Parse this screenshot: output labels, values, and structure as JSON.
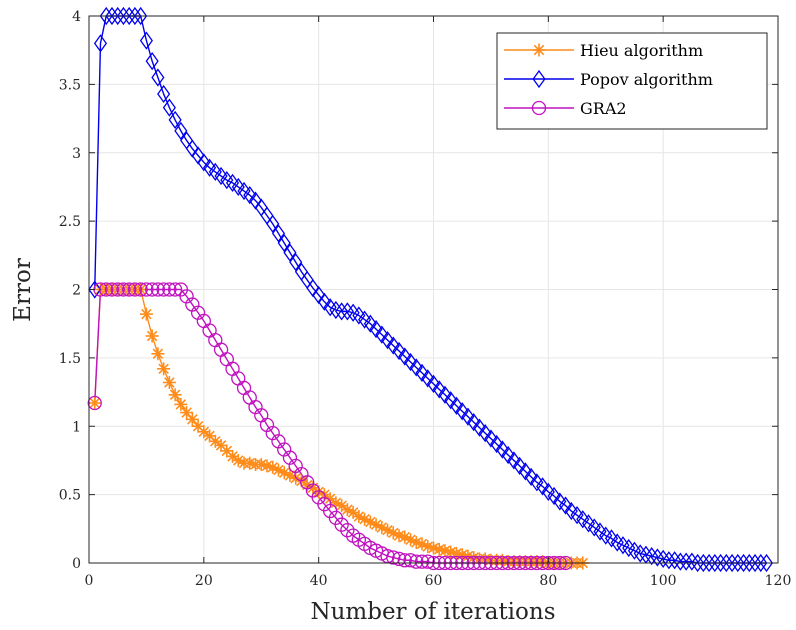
{
  "chart_data": {
    "type": "line",
    "xlabel": "Number of iterations",
    "ylabel": "Error",
    "xlim": [
      0,
      120
    ],
    "ylim": [
      0,
      4
    ],
    "xticks": [
      0,
      20,
      40,
      60,
      80,
      100,
      120
    ],
    "yticks": [
      0,
      0.5,
      1,
      1.5,
      2,
      2.5,
      3,
      3.5,
      4
    ],
    "xtick_labels": [
      "0",
      "20",
      "40",
      "60",
      "80",
      "100",
      "120"
    ],
    "ytick_labels": [
      "0",
      "0.5",
      "1",
      "1.5",
      "2",
      "2.5",
      "3",
      "3.5",
      "4"
    ],
    "grid": true,
    "legend_position": "top-right",
    "series": [
      {
        "name": "Hieu algorithm",
        "color": "#ff8c1a",
        "marker": "asterisk",
        "x": [
          1,
          2,
          3,
          4,
          5,
          6,
          7,
          8,
          9,
          10,
          11,
          12,
          13,
          14,
          15,
          16,
          17,
          18,
          19,
          20,
          21,
          22,
          23,
          24,
          25,
          26,
          27,
          28,
          29,
          30,
          31,
          32,
          33,
          34,
          35,
          36,
          37,
          38,
          39,
          40,
          41,
          42,
          43,
          44,
          45,
          46,
          47,
          48,
          49,
          50,
          51,
          52,
          53,
          54,
          55,
          56,
          57,
          58,
          59,
          60,
          61,
          62,
          63,
          64,
          65,
          66,
          67,
          68,
          69,
          70,
          71,
          72,
          73,
          74,
          75,
          76,
          77,
          78,
          79,
          80,
          81,
          82,
          83,
          84,
          85,
          86
        ],
        "y": [
          1.17,
          2.0,
          2.0,
          2.0,
          2.0,
          2.0,
          2.0,
          2.0,
          2.0,
          1.82,
          1.66,
          1.53,
          1.42,
          1.32,
          1.23,
          1.16,
          1.1,
          1.05,
          1.0,
          0.96,
          0.93,
          0.89,
          0.86,
          0.82,
          0.78,
          0.75,
          0.73,
          0.73,
          0.72,
          0.72,
          0.71,
          0.7,
          0.68,
          0.66,
          0.64,
          0.62,
          0.6,
          0.57,
          0.55,
          0.52,
          0.5,
          0.47,
          0.44,
          0.42,
          0.39,
          0.37,
          0.34,
          0.32,
          0.3,
          0.28,
          0.26,
          0.24,
          0.22,
          0.2,
          0.19,
          0.17,
          0.15,
          0.14,
          0.12,
          0.11,
          0.1,
          0.09,
          0.08,
          0.07,
          0.06,
          0.05,
          0.04,
          0.03,
          0.03,
          0.02,
          0.02,
          0.02,
          0.01,
          0.01,
          0.01,
          0.01,
          0.01,
          0.01,
          0.01,
          0.0,
          0.0,
          0.0,
          0.0,
          0.0,
          0.0,
          0.0
        ]
      },
      {
        "name": "Popov algorithm",
        "color": "#0000ee",
        "marker": "diamond",
        "x": [
          1,
          2,
          3,
          4,
          5,
          6,
          7,
          8,
          9,
          10,
          11,
          12,
          13,
          14,
          15,
          16,
          17,
          18,
          19,
          20,
          21,
          22,
          23,
          24,
          25,
          26,
          27,
          28,
          29,
          30,
          31,
          32,
          33,
          34,
          35,
          36,
          37,
          38,
          39,
          40,
          41,
          42,
          43,
          44,
          45,
          46,
          47,
          48,
          49,
          50,
          51,
          52,
          53,
          54,
          55,
          56,
          57,
          58,
          59,
          60,
          61,
          62,
          63,
          64,
          65,
          66,
          67,
          68,
          69,
          70,
          71,
          72,
          73,
          74,
          75,
          76,
          77,
          78,
          79,
          80,
          81,
          82,
          83,
          84,
          85,
          86,
          87,
          88,
          89,
          90,
          91,
          92,
          93,
          94,
          95,
          96,
          97,
          98,
          99,
          100,
          101,
          102,
          103,
          104,
          105,
          106,
          107,
          108,
          109,
          110,
          111,
          112,
          113,
          114,
          115,
          116,
          117,
          118
        ],
        "y": [
          2.0,
          3.8,
          4.0,
          4.0,
          4.0,
          4.0,
          4.0,
          4.0,
          4.0,
          3.82,
          3.67,
          3.55,
          3.43,
          3.33,
          3.24,
          3.16,
          3.09,
          3.03,
          2.98,
          2.93,
          2.89,
          2.86,
          2.83,
          2.8,
          2.78,
          2.75,
          2.72,
          2.69,
          2.65,
          2.6,
          2.54,
          2.48,
          2.41,
          2.34,
          2.27,
          2.2,
          2.13,
          2.07,
          2.01,
          1.96,
          1.91,
          1.87,
          1.85,
          1.84,
          1.84,
          1.83,
          1.81,
          1.78,
          1.75,
          1.71,
          1.67,
          1.63,
          1.59,
          1.55,
          1.51,
          1.47,
          1.43,
          1.39,
          1.35,
          1.31,
          1.27,
          1.23,
          1.19,
          1.15,
          1.11,
          1.07,
          1.03,
          0.99,
          0.95,
          0.91,
          0.87,
          0.83,
          0.79,
          0.75,
          0.71,
          0.67,
          0.63,
          0.59,
          0.56,
          0.52,
          0.49,
          0.45,
          0.42,
          0.38,
          0.35,
          0.32,
          0.29,
          0.26,
          0.23,
          0.2,
          0.18,
          0.15,
          0.13,
          0.11,
          0.09,
          0.07,
          0.06,
          0.05,
          0.04,
          0.03,
          0.02,
          0.02,
          0.01,
          0.01,
          0.01,
          0.0,
          0.0,
          0.0,
          0.0,
          0.0,
          0.0,
          0.0,
          0.0,
          0.0,
          0.0,
          0.0,
          0.0,
          0.0
        ]
      },
      {
        "name": "GRA2",
        "color": "#c012c0",
        "marker": "circle",
        "x": [
          1,
          2,
          3,
          4,
          5,
          6,
          7,
          8,
          9,
          10,
          11,
          12,
          13,
          14,
          15,
          16,
          17,
          18,
          19,
          20,
          21,
          22,
          23,
          24,
          25,
          26,
          27,
          28,
          29,
          30,
          31,
          32,
          33,
          34,
          35,
          36,
          37,
          38,
          39,
          40,
          41,
          42,
          43,
          44,
          45,
          46,
          47,
          48,
          49,
          50,
          51,
          52,
          53,
          54,
          55,
          56,
          57,
          58,
          59,
          60,
          61,
          62,
          63,
          64,
          65,
          66,
          67,
          68,
          69,
          70,
          71,
          72,
          73,
          74,
          75,
          76,
          77,
          78,
          79,
          80,
          81,
          82,
          83
        ],
        "y": [
          1.17,
          2.0,
          2.0,
          2.0,
          2.0,
          2.0,
          2.0,
          2.0,
          2.0,
          2.0,
          2.0,
          2.0,
          2.0,
          2.0,
          2.0,
          2.0,
          1.95,
          1.89,
          1.83,
          1.77,
          1.7,
          1.63,
          1.56,
          1.49,
          1.42,
          1.35,
          1.28,
          1.21,
          1.14,
          1.08,
          1.01,
          0.95,
          0.89,
          0.83,
          0.77,
          0.71,
          0.65,
          0.59,
          0.53,
          0.48,
          0.43,
          0.38,
          0.33,
          0.28,
          0.24,
          0.2,
          0.17,
          0.14,
          0.11,
          0.09,
          0.07,
          0.05,
          0.04,
          0.03,
          0.02,
          0.02,
          0.01,
          0.01,
          0.01,
          0.0,
          0.0,
          0.0,
          0.0,
          0.0,
          0.0,
          0.0,
          0.0,
          0.0,
          0.0,
          0.0,
          0.0,
          0.0,
          0.0,
          0.0,
          0.0,
          0.0,
          0.0,
          0.0,
          0.0,
          0.0,
          0.0,
          0.0,
          0.0
        ]
      }
    ]
  }
}
